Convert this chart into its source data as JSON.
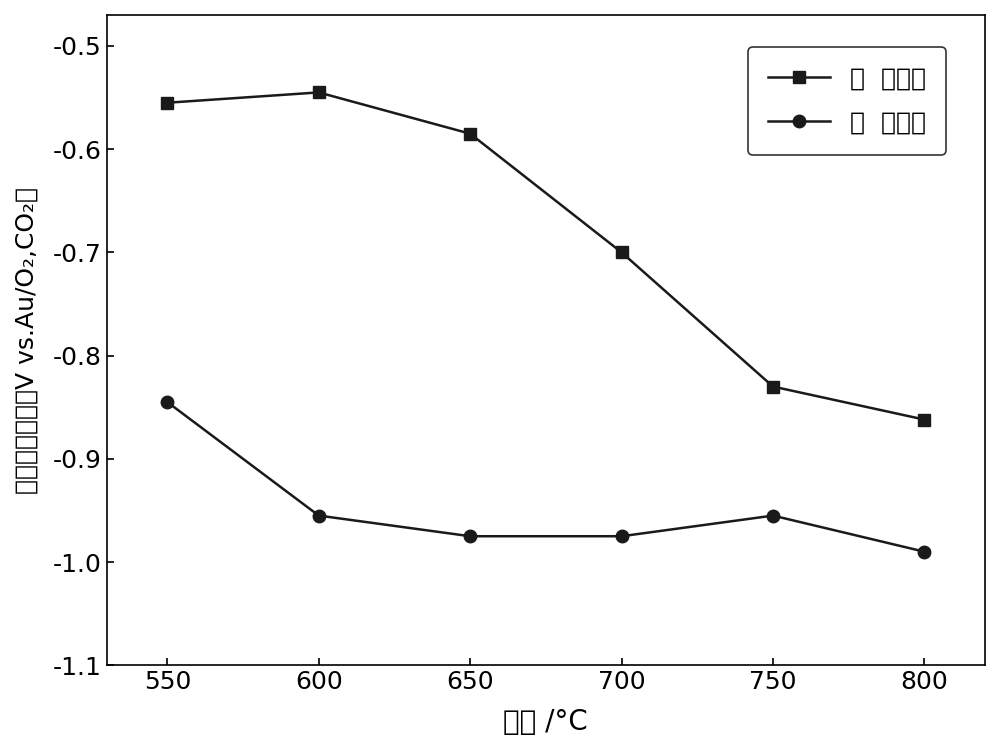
{
  "x": [
    550,
    600,
    650,
    700,
    750,
    800
  ],
  "no_catalyst": [
    -0.555,
    -0.545,
    -0.585,
    -0.7,
    -0.83,
    -0.862
  ],
  "with_catalyst": [
    -0.845,
    -0.955,
    -0.975,
    -0.975,
    -0.955,
    -0.99
  ],
  "xlabel": "温度 /°C",
  "ylabel": "起始氧化电位（V vs.Au/O₂,CO₂）",
  "legend_no_cat": "无  制化废",
  "legend_with_cat": "有  制化废",
  "xlim": [
    530,
    820
  ],
  "ylim": [
    -1.1,
    -0.47
  ],
  "xticks": [
    550,
    600,
    650,
    700,
    750,
    800
  ],
  "yticks": [
    -1.1,
    -1.0,
    -0.9,
    -0.8,
    -0.7,
    -0.6,
    -0.5
  ],
  "line_color": "#1a1a1a",
  "marker_size": 9,
  "linewidth": 1.8,
  "bg_color": "#ffffff"
}
